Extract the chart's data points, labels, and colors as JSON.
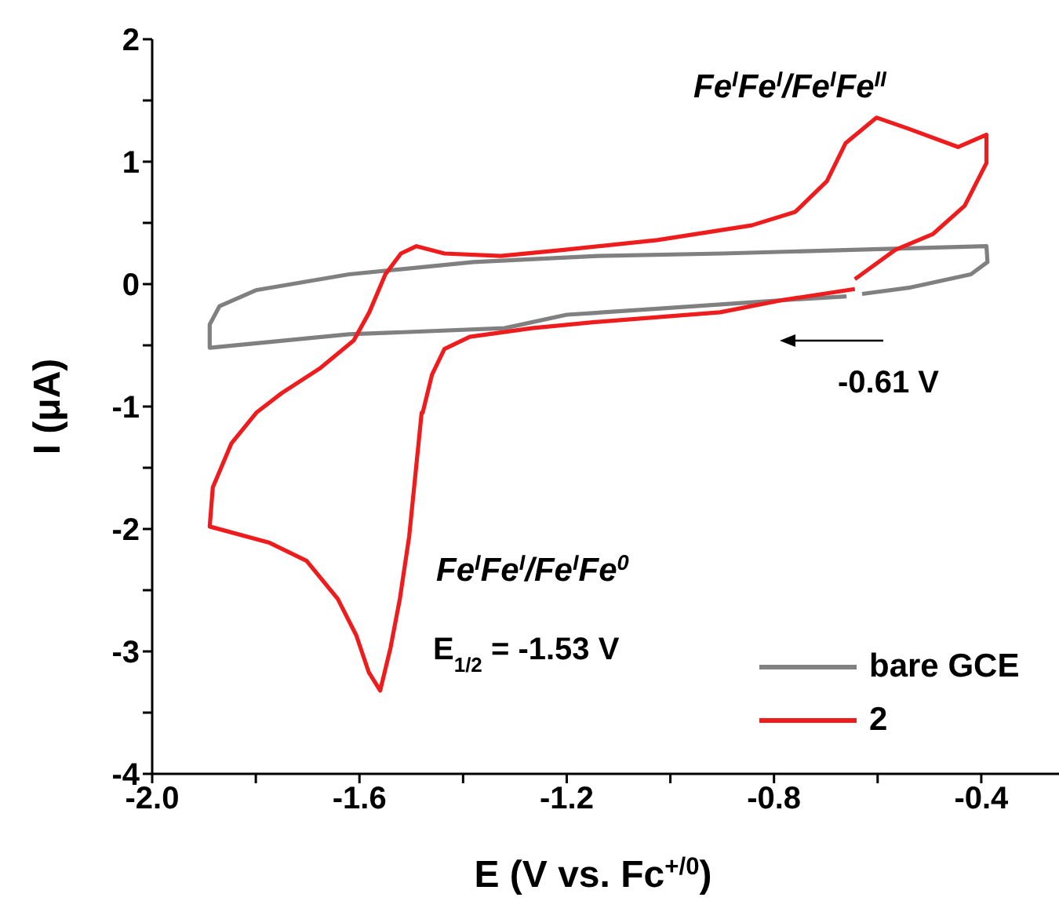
{
  "chart_data": {
    "type": "line",
    "xlabel": "E (V vs. Fc$^{+/0}$)",
    "ylabel": "I (μA)",
    "xlim": [
      -2.0,
      -0.25
    ],
    "xticks": [
      {
        "value": -2,
        "label": "-2.0"
      },
      {
        "value": -1.8,
        "label": null
      },
      {
        "value": -1.6,
        "label": "-1.6"
      },
      {
        "value": -1.4,
        "label": null
      },
      {
        "value": -1.2,
        "label": "-1.2"
      },
      {
        "value": -1,
        "label": null
      },
      {
        "value": -0.8,
        "label": "-0.8"
      },
      {
        "value": -0.6,
        "label": null
      },
      {
        "value": -0.4,
        "label": "-0.4"
      }
    ],
    "ylim": [
      -4,
      2
    ],
    "yticks": [
      -4,
      {
        "value": -3.5,
        "label": null
      },
      -3,
      {
        "value": -2.5,
        "label": null
      },
      -2,
      {
        "value": -1.5,
        "label": null
      },
      -1,
      {
        "value": -0.5,
        "label": null
      },
      0,
      {
        "value": 0.5,
        "label": null
      },
      1,
      {
        "value": 1.5,
        "label": null
      },
      2
    ],
    "legend": "bottom right",
    "marker": "none",
    "line_style": "solid",
    "series": [
      {
        "name": "bare GCE",
        "color": "#808080",
        "x": [
          -0.66,
          -0.78,
          -1.02,
          -1.2,
          -1.32,
          -1.62,
          -1.889,
          -1.889,
          -1.87,
          -1.8,
          -1.62,
          -1.38,
          -1.14,
          -0.9,
          -0.65,
          -0.39,
          -0.388,
          -0.42,
          -0.54,
          -0.63
        ],
        "values": [
          -0.1,
          -0.13,
          -0.2,
          -0.25,
          -0.36,
          -0.41,
          -0.52,
          -0.33,
          -0.18,
          -0.05,
          0.08,
          0.18,
          0.23,
          0.25,
          0.28,
          0.31,
          0.18,
          0.08,
          -0.03,
          -0.08
        ]
      },
      {
        "name": "2",
        "color": "#ee1c1c",
        "x": [
          -0.644,
          -0.783,
          -0.904,
          -1.146,
          -1.267,
          -1.387,
          -1.436,
          -1.46,
          -1.478,
          -1.48,
          -1.504,
          -1.522,
          -1.54,
          -1.56,
          -1.582,
          -1.606,
          -1.642,
          -1.702,
          -1.775,
          -1.889,
          -1.883,
          -1.847,
          -1.799,
          -1.75,
          -1.677,
          -1.611,
          -1.581,
          -1.55,
          -1.52,
          -1.49,
          -1.436,
          -1.327,
          -1.206,
          -1.025,
          -0.843,
          -0.759,
          -0.698,
          -0.662,
          -0.602,
          -0.541,
          -0.445,
          -0.39,
          -0.39,
          -0.432,
          -0.493,
          -0.566,
          -0.644
        ],
        "values": [
          -0.04,
          -0.13,
          -0.23,
          -0.31,
          -0.36,
          -0.43,
          -0.53,
          -0.74,
          -1.05,
          -1.05,
          -2.06,
          -2.57,
          -2.97,
          -3.32,
          -3.17,
          -2.87,
          -2.57,
          -2.26,
          -2.11,
          -1.98,
          -1.66,
          -1.3,
          -1.05,
          -0.89,
          -0.69,
          -0.46,
          -0.23,
          0.08,
          0.25,
          0.31,
          0.25,
          0.23,
          0.28,
          0.36,
          0.48,
          0.59,
          0.84,
          1.15,
          1.36,
          1.27,
          1.12,
          1.22,
          0.99,
          0.64,
          0.41,
          0.28,
          0.04
        ]
      }
    ],
    "annotations": [
      "Fe$^{I}$Fe$^{I}$/Fe$^{I}$Fe$^{II}$",
      "Fe$^{I}$Fe$^{I}$/Fe$^{I}$Fe$^{0}$",
      "E$_{1/2}$ = -1.53 V",
      "-0.61 V"
    ]
  }
}
